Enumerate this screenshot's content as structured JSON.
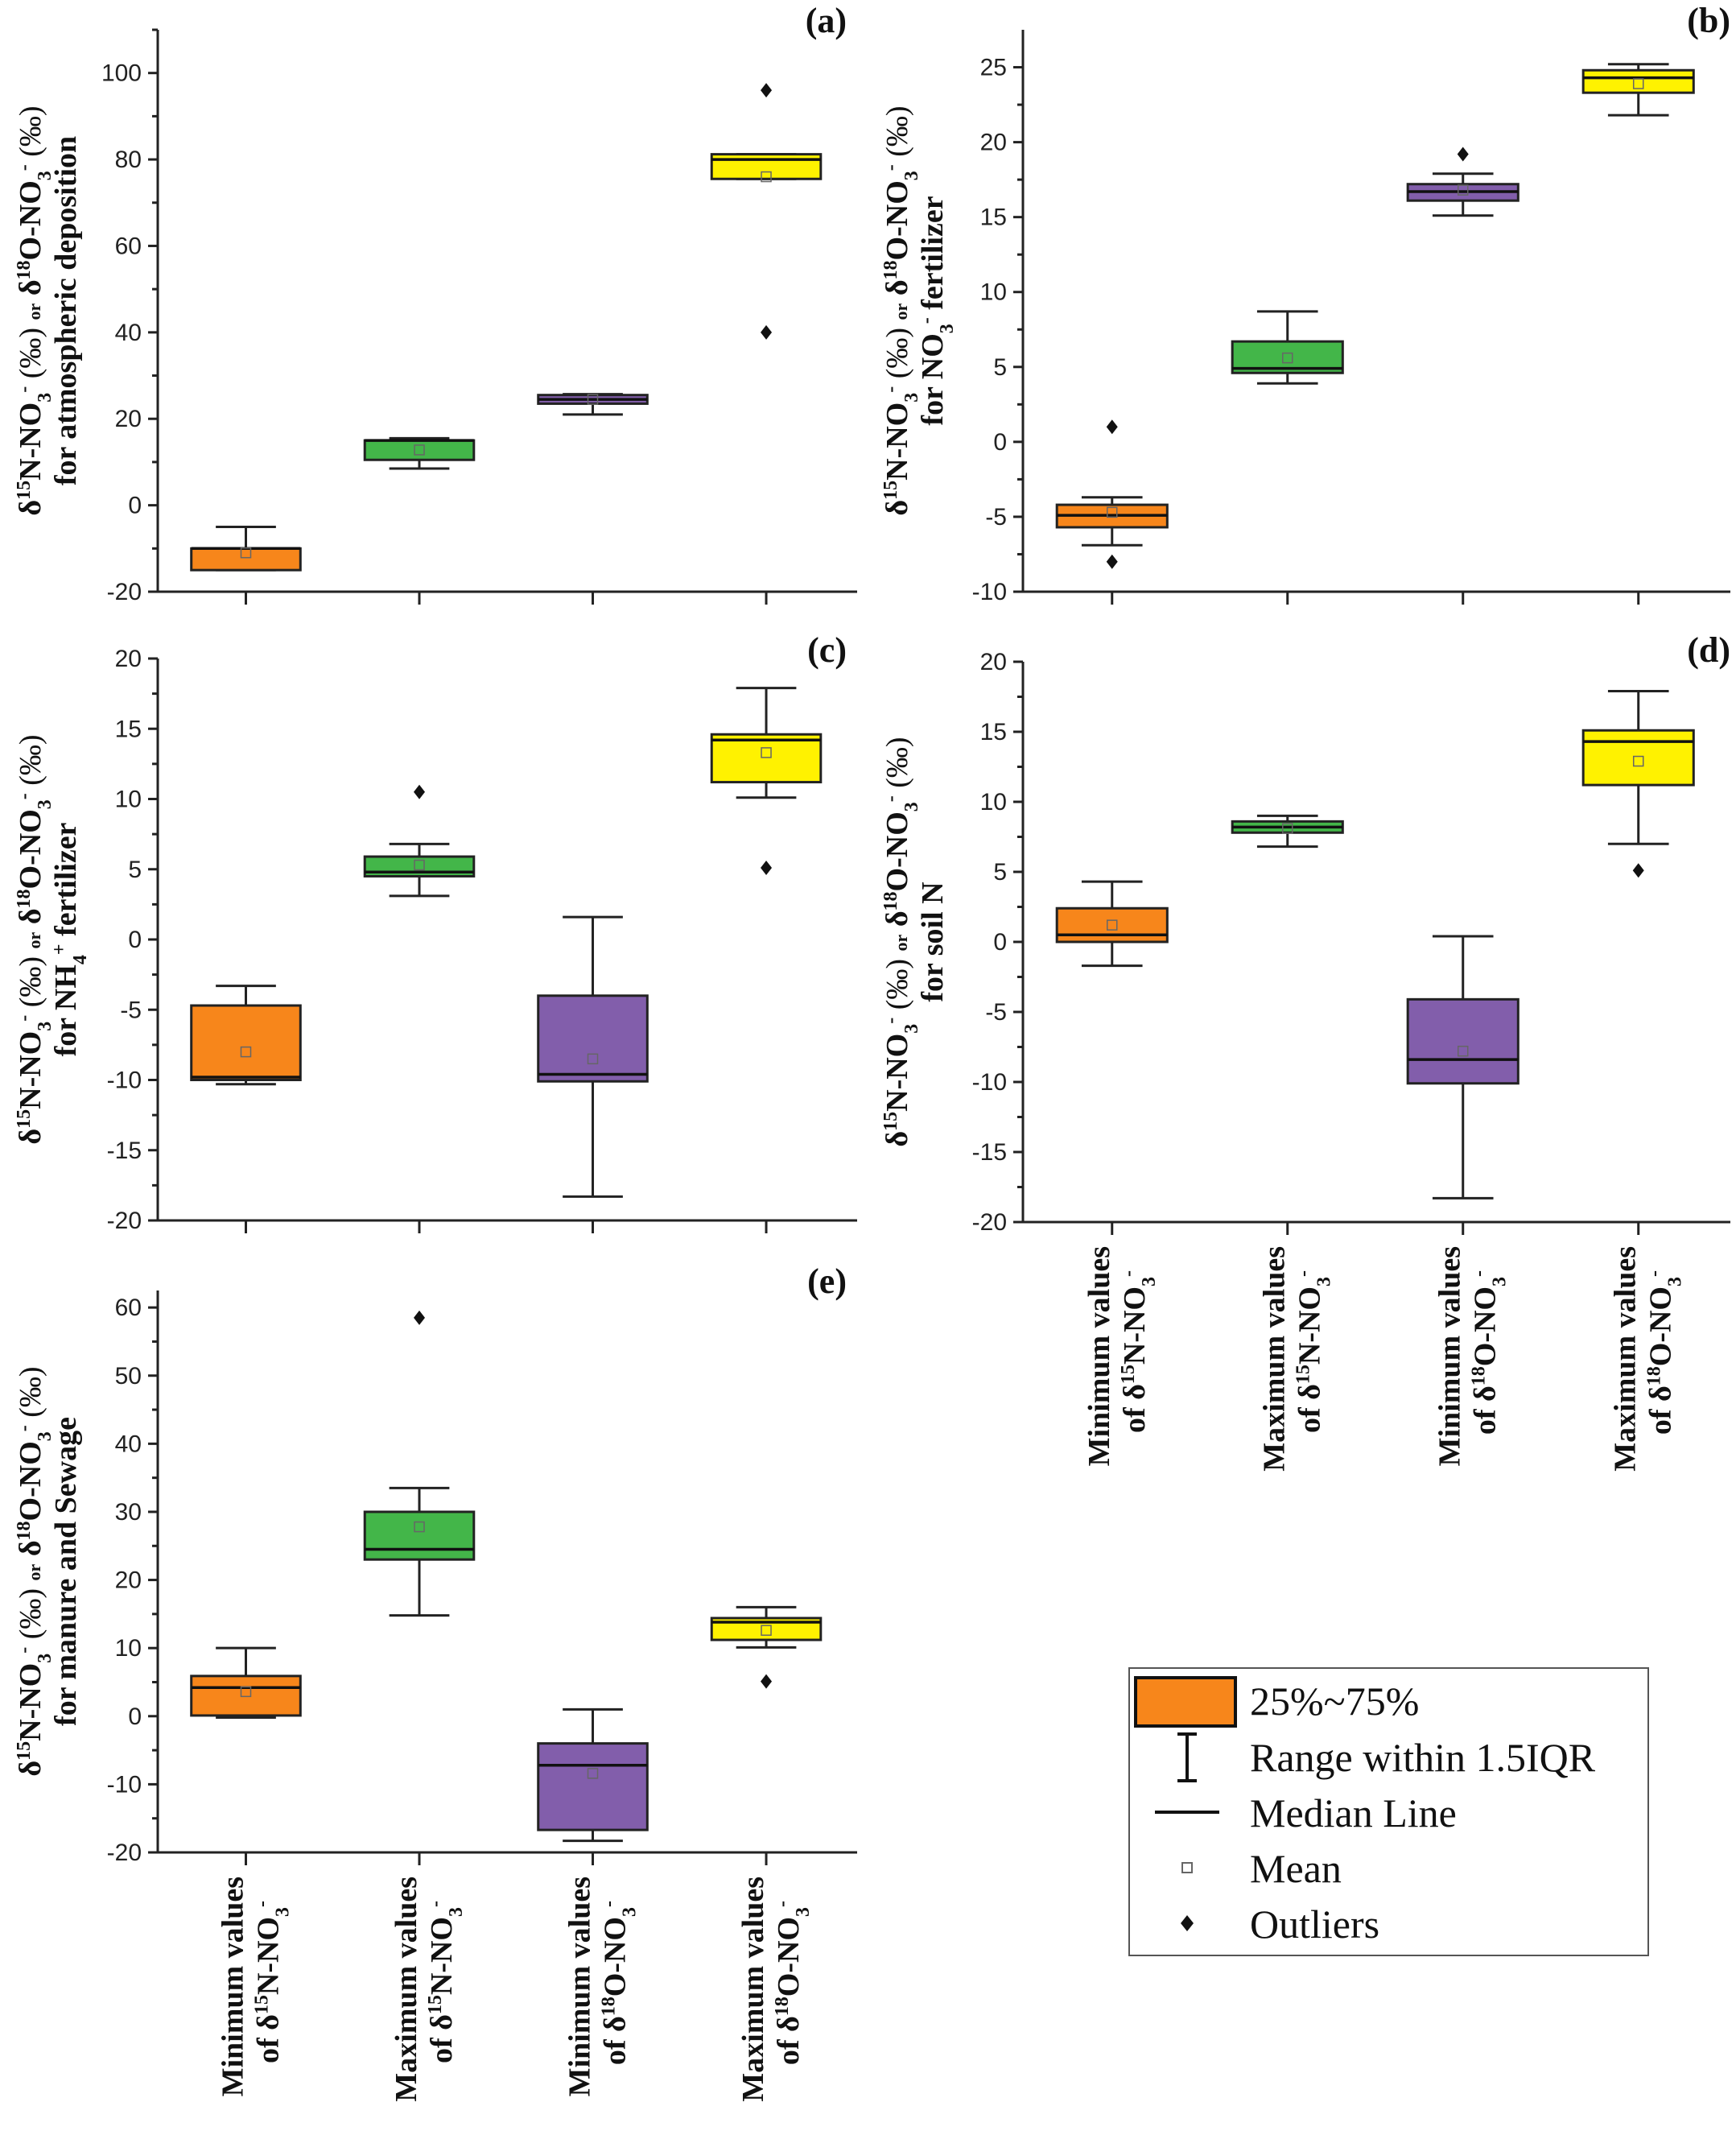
{
  "chart_data": {
    "type": "box",
    "colors": {
      "min_d15N": "#f7861b",
      "max_d15N": "#43b649",
      "min_d18O": "#825eab",
      "max_d18O": "#fff200",
      "outline": "#222222"
    },
    "categories": [
      {
        "line1": "Minimum values",
        "line2": "of δ15N-NO3-"
      },
      {
        "line1": "Maximum values",
        "line2": "of δ15N-NO3-"
      },
      {
        "line1": "Minimum values",
        "line2": "of δ18O-NO3-"
      },
      {
        "line1": "Maximum values",
        "line2": "of δ18O-NO3-"
      }
    ],
    "category_labels": {
      "c0": {
        "a": "Minimum values",
        "b": "of δ",
        "sup": "15",
        "c": "N-NO",
        "sub": "3",
        "sup2": "-"
      },
      "c1": {
        "a": "Maximum values",
        "b": "of δ",
        "sup": "15",
        "c": "N-NO",
        "sub": "3",
        "sup2": "-"
      },
      "c2": {
        "a": "Minimum values",
        "b": "of δ",
        "sup": "18",
        "c": "O-NO",
        "sub": "3",
        "sup2": "-"
      },
      "c3": {
        "a": "Maximum values",
        "b": "of δ",
        "sup": "18",
        "c": "O-NO",
        "sub": "3",
        "sup2": "-"
      }
    },
    "ylabel_common": {
      "d": "δ",
      "n15": "15",
      "n": "N-NO",
      "s3": "3",
      "m": "-",
      "pm": " (‰) ",
      "or": "or",
      "d2": " δ",
      "o18": "18",
      "o": "O-NO",
      "s3b": "3",
      "mb": "-",
      "pmb": " (‰)"
    },
    "panels": [
      {
        "id": "a",
        "letter": "(a)",
        "ylabel_line2": "for atmospheric deposition",
        "ylim": [
          -20,
          110
        ],
        "yticks": [
          -20,
          0,
          20,
          40,
          60,
          80,
          100
        ],
        "yminor": [
          -10,
          10,
          30,
          50,
          70,
          90,
          110
        ],
        "boxes": [
          {
            "whisker_low": -15,
            "q1": -15,
            "median": -10,
            "q3": -10,
            "whisker_high": -5,
            "mean": -11,
            "outliers": []
          },
          {
            "whisker_low": 8.5,
            "q1": 10.5,
            "median": 15,
            "q3": 15,
            "whisker_high": 15.5,
            "mean": 12.8,
            "outliers": []
          },
          {
            "whisker_low": 21,
            "q1": 23.5,
            "median": 24.5,
            "q3": 25.5,
            "whisker_high": 25.7,
            "mean": 24.5,
            "outliers": []
          },
          {
            "whisker_low": 75.5,
            "q1": 75.5,
            "median": 80,
            "q3": 81.2,
            "whisker_high": 81.2,
            "mean": 76,
            "outliers": [
              96,
              40
            ]
          }
        ]
      },
      {
        "id": "b",
        "letter": "(b)",
        "ylabel_line2_pre": "for NO",
        "ylabel_line2_sub": "3",
        "ylabel_line2_sup": "-",
        "ylabel_line2_post": " fertilizer",
        "ylim": [
          -10,
          27.5
        ],
        "yticks": [
          -10,
          -5,
          0,
          5,
          10,
          15,
          20,
          25
        ],
        "yminor": [
          -7.5,
          -2.5,
          2.5,
          7.5,
          12.5,
          17.5,
          22.5
        ],
        "boxes": [
          {
            "whisker_low": -6.9,
            "q1": -5.7,
            "median": -4.9,
            "q3": -4.2,
            "whisker_high": -3.7,
            "mean": -4.7,
            "outliers": [
              1,
              -8
            ]
          },
          {
            "whisker_low": 3.9,
            "q1": 4.6,
            "median": 4.9,
            "q3": 6.7,
            "whisker_high": 8.7,
            "mean": 5.6,
            "outliers": []
          },
          {
            "whisker_low": 15.1,
            "q1": 16.1,
            "median": 16.7,
            "q3": 17.2,
            "whisker_high": 17.9,
            "mean": 16.8,
            "outliers": [
              19.2
            ]
          },
          {
            "whisker_low": 21.8,
            "q1": 23.3,
            "median": 24.3,
            "q3": 24.8,
            "whisker_high": 25.2,
            "mean": 23.9,
            "outliers": []
          }
        ]
      },
      {
        "id": "c",
        "letter": "(c)",
        "ylabel_line2_pre": "for NH",
        "ylabel_line2_sub": "4",
        "ylabel_line2_sup": "+",
        "ylabel_line2_post": " fertilizer",
        "ylim": [
          -20,
          20
        ],
        "yticks": [
          -20,
          -15,
          -10,
          -5,
          0,
          5,
          10,
          15,
          20
        ],
        "yminor": [
          -17.5,
          -12.5,
          -7.5,
          -2.5,
          2.5,
          7.5,
          12.5,
          17.5
        ],
        "boxes": [
          {
            "whisker_low": -10.3,
            "q1": -10,
            "median": -9.8,
            "q3": -4.7,
            "whisker_high": -3.3,
            "mean": -8,
            "outliers": []
          },
          {
            "whisker_low": 3.1,
            "q1": 4.5,
            "median": 4.8,
            "q3": 5.9,
            "whisker_high": 6.8,
            "mean": 5.3,
            "outliers": [
              10.5
            ]
          },
          {
            "whisker_low": -18.3,
            "q1": -10.1,
            "median": -9.6,
            "q3": -4,
            "whisker_high": 1.6,
            "mean": -8.5,
            "outliers": []
          },
          {
            "whisker_low": 10.1,
            "q1": 11.2,
            "median": 14.2,
            "q3": 14.6,
            "whisker_high": 17.9,
            "mean": 13.3,
            "outliers": [
              5.1
            ]
          }
        ]
      },
      {
        "id": "d",
        "letter": "(d)",
        "ylabel_line2": "for soil N",
        "ylim": [
          -20,
          20
        ],
        "yticks": [
          -20,
          -15,
          -10,
          -5,
          0,
          5,
          10,
          15,
          20
        ],
        "yminor": [
          -17.5,
          -12.5,
          -7.5,
          -2.5,
          2.5,
          7.5,
          12.5,
          17.5
        ],
        "boxes": [
          {
            "whisker_low": -1.7,
            "q1": 0,
            "median": 0.5,
            "q3": 2.4,
            "whisker_high": 4.3,
            "mean": 1.2,
            "outliers": []
          },
          {
            "whisker_low": 6.8,
            "q1": 7.8,
            "median": 8.2,
            "q3": 8.6,
            "whisker_high": 9,
            "mean": 8.1,
            "outliers": []
          },
          {
            "whisker_low": -18.3,
            "q1": -10.1,
            "median": -8.4,
            "q3": -4.1,
            "whisker_high": 0.4,
            "mean": -7.8,
            "outliers": []
          },
          {
            "whisker_low": 7,
            "q1": 11.2,
            "median": 14.3,
            "q3": 15.1,
            "whisker_high": 17.9,
            "mean": 12.9,
            "outliers": [
              5.1
            ]
          }
        ]
      },
      {
        "id": "e",
        "letter": "(e)",
        "ylabel_line2": "for manure and Sewage",
        "ylim": [
          -20,
          62.5
        ],
        "yticks": [
          -20,
          -10,
          0,
          10,
          20,
          30,
          40,
          50,
          60
        ],
        "yminor": [
          -15,
          -5,
          5,
          15,
          25,
          35,
          45,
          55
        ],
        "boxes": [
          {
            "whisker_low": -0.2,
            "q1": 0.1,
            "median": 4.2,
            "q3": 5.9,
            "whisker_high": 10,
            "mean": 3.6,
            "outliers": []
          },
          {
            "whisker_low": 14.8,
            "q1": 23,
            "median": 24.5,
            "q3": 30,
            "whisker_high": 33.5,
            "mean": 27.8,
            "outliers": [
              58.5
            ]
          },
          {
            "whisker_low": -18.3,
            "q1": -16.7,
            "median": -7.2,
            "q3": -4,
            "whisker_high": 1,
            "mean": -8.4,
            "outliers": []
          },
          {
            "whisker_low": 10.1,
            "q1": 11.2,
            "median": 13.8,
            "q3": 14.4,
            "whisker_high": 16,
            "mean": 12.6,
            "outliers": [
              5.1
            ]
          }
        ]
      }
    ],
    "legend": {
      "position": "bottom-right",
      "items": [
        {
          "symbol": "box",
          "label": "25%~75%"
        },
        {
          "symbol": "whisker",
          "label": "Range within 1.5IQR"
        },
        {
          "symbol": "line",
          "label": "Median Line"
        },
        {
          "symbol": "open-square",
          "label": "Mean"
        },
        {
          "symbol": "diamond",
          "label": "Outliers"
        }
      ]
    }
  }
}
